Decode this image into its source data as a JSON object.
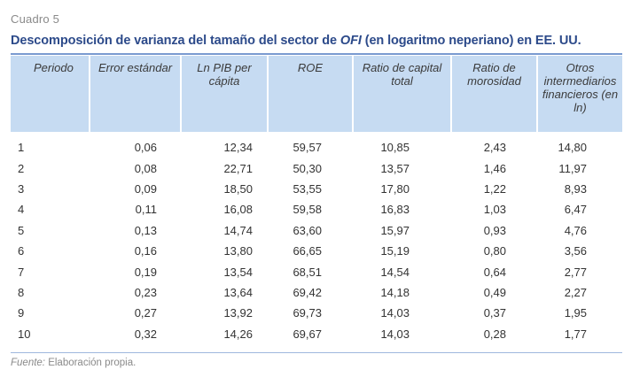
{
  "label": "Cuadro 5",
  "title": {
    "prefix": "Descomposición de varianza del tamaño del sector de ",
    "emphasis": "OFI",
    "suffix": " (en logaritmo neperiano) en EE. UU."
  },
  "table": {
    "columns": [
      "Periodo",
      "Error estándar",
      "Ln PIB per cápita",
      "ROE",
      "Ratio de capital total",
      "Ratio de morosidad",
      "Otros intermediarios financieros (en ln)"
    ],
    "rows": [
      [
        "1",
        "0,06",
        "12,34",
        "59,57",
        "10,85",
        "2,43",
        "14,80"
      ],
      [
        "2",
        "0,08",
        "22,71",
        "50,30",
        "13,57",
        "1,46",
        "11,97"
      ],
      [
        "3",
        "0,09",
        "18,50",
        "53,55",
        "17,80",
        "1,22",
        "8,93"
      ],
      [
        "4",
        "0,11",
        "16,08",
        "59,58",
        "16,83",
        "1,03",
        "6,47"
      ],
      [
        "5",
        "0,13",
        "14,74",
        "63,60",
        "15,97",
        "0,93",
        "4,76"
      ],
      [
        "6",
        "0,16",
        "13,80",
        "66,65",
        "15,19",
        "0,80",
        "3,56"
      ],
      [
        "7",
        "0,19",
        "13,54",
        "68,51",
        "14,54",
        "0,64",
        "2,77"
      ],
      [
        "8",
        "0,23",
        "13,64",
        "69,42",
        "14,18",
        "0,49",
        "2,27"
      ],
      [
        "9",
        "0,27",
        "13,92",
        "69,73",
        "14,03",
        "0,37",
        "1,95"
      ],
      [
        "10",
        "0,32",
        "14,26",
        "69,67",
        "14,03",
        "0,28",
        "1,77"
      ]
    ]
  },
  "source": {
    "label": "Fuente:",
    "text": " Elaboración propia."
  },
  "colors": {
    "title": "#2c4a8a",
    "header_bg": "#c6dbf2",
    "rule": "#7a9ad0",
    "muted_text": "#8a8a8a"
  }
}
